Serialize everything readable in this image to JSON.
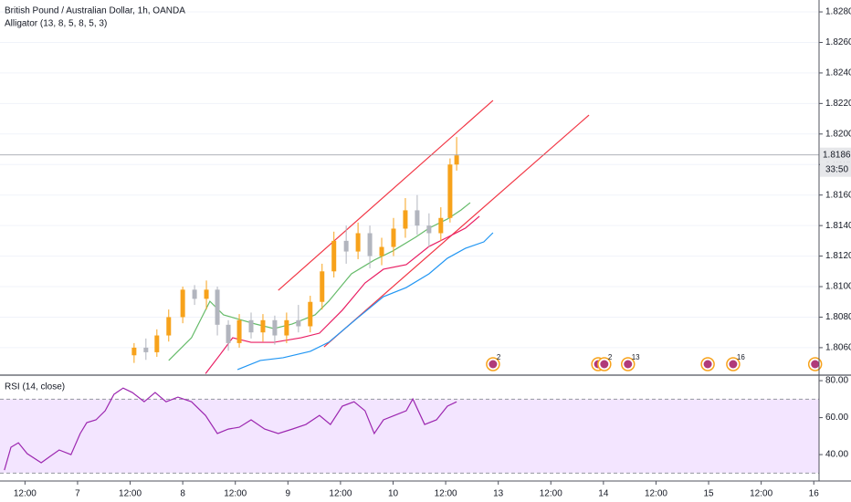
{
  "chart_data": [
    {
      "type": "candlestick",
      "title": "British Pound / Australian Dollar, 1h, OANDA",
      "subtitle": "Alligator (13, 8, 5, 8, 5, 3)",
      "up_color": "#f7a21b",
      "down_color": "#b2b5be",
      "xlim": [
        -17.7,
        169.2
      ],
      "ylim": [
        1.80426,
        1.82878
      ],
      "yticks": [
        {
          "value": 1.828,
          "label": "1.82800"
        },
        {
          "value": 1.826,
          "label": "1.82600"
        },
        {
          "value": 1.824,
          "label": "1.82400"
        },
        {
          "value": 1.822,
          "label": "1.82200"
        },
        {
          "value": 1.82,
          "label": "1.82000"
        },
        {
          "value": 1.818,
          "label": "1.81800"
        },
        {
          "value": 1.816,
          "label": "1.81600"
        },
        {
          "value": 1.814,
          "label": "1.81400"
        },
        {
          "value": 1.812,
          "label": "1.81200"
        },
        {
          "value": 1.81,
          "label": "1.81000"
        },
        {
          "value": 1.808,
          "label": "1.80800"
        },
        {
          "value": 1.806,
          "label": "1.80600"
        }
      ],
      "current_price": {
        "value": 1.81863,
        "label": "1.81863"
      },
      "countdown": "33:50",
      "candles": [
        {
          "x": 12.9,
          "open": 1.8055,
          "high": 1.8063,
          "low": 1.805,
          "close": 1.806
        },
        {
          "x": 15.6,
          "open": 1.806,
          "high": 1.8066,
          "low": 1.8052,
          "close": 1.8057
        },
        {
          "x": 18.1,
          "open": 1.8057,
          "high": 1.8072,
          "low": 1.8054,
          "close": 1.8068
        },
        {
          "x": 20.8,
          "open": 1.8068,
          "high": 1.8085,
          "low": 1.8064,
          "close": 1.808
        },
        {
          "x": 24,
          "open": 1.808,
          "high": 1.81,
          "low": 1.8076,
          "close": 1.8098
        },
        {
          "x": 26.7,
          "open": 1.8098,
          "high": 1.8101,
          "low": 1.8088,
          "close": 1.8092
        },
        {
          "x": 29.4,
          "open": 1.8092,
          "high": 1.8104,
          "low": 1.8085,
          "close": 1.8098
        },
        {
          "x": 31.9,
          "open": 1.8098,
          "high": 1.81,
          "low": 1.8068,
          "close": 1.8075
        },
        {
          "x": 34.4,
          "open": 1.8075,
          "high": 1.8078,
          "low": 1.8058,
          "close": 1.8063
        },
        {
          "x": 36.9,
          "open": 1.8063,
          "high": 1.8082,
          "low": 1.806,
          "close": 1.8078
        },
        {
          "x": 39.6,
          "open": 1.8078,
          "high": 1.8083,
          "low": 1.8066,
          "close": 1.807
        },
        {
          "x": 42.3,
          "open": 1.807,
          "high": 1.8082,
          "low": 1.8064,
          "close": 1.8078
        },
        {
          "x": 45,
          "open": 1.8078,
          "high": 1.8081,
          "low": 1.8062,
          "close": 1.8068
        },
        {
          "x": 47.7,
          "open": 1.8068,
          "high": 1.8083,
          "low": 1.8063,
          "close": 1.8078
        },
        {
          "x": 50.4,
          "open": 1.8078,
          "high": 1.8088,
          "low": 1.807,
          "close": 1.8074
        },
        {
          "x": 53.1,
          "open": 1.8074,
          "high": 1.8094,
          "low": 1.807,
          "close": 1.809
        },
        {
          "x": 55.8,
          "open": 1.809,
          "high": 1.8115,
          "low": 1.8085,
          "close": 1.811
        },
        {
          "x": 58.5,
          "open": 1.811,
          "high": 1.8136,
          "low": 1.8106,
          "close": 1.813
        },
        {
          "x": 61.3,
          "open": 1.813,
          "high": 1.814,
          "low": 1.8115,
          "close": 1.8123
        },
        {
          "x": 64,
          "open": 1.8123,
          "high": 1.8142,
          "low": 1.8118,
          "close": 1.8135
        },
        {
          "x": 66.7,
          "open": 1.8135,
          "high": 1.814,
          "low": 1.8112,
          "close": 1.812
        },
        {
          "x": 69.4,
          "open": 1.812,
          "high": 1.8132,
          "low": 1.8114,
          "close": 1.8126
        },
        {
          "x": 72.1,
          "open": 1.8126,
          "high": 1.8145,
          "low": 1.812,
          "close": 1.8138
        },
        {
          "x": 74.8,
          "open": 1.8138,
          "high": 1.8158,
          "low": 1.8132,
          "close": 1.815
        },
        {
          "x": 77.5,
          "open": 1.815,
          "high": 1.816,
          "low": 1.8134,
          "close": 1.814
        },
        {
          "x": 80.2,
          "open": 1.814,
          "high": 1.8148,
          "low": 1.8126,
          "close": 1.8135
        },
        {
          "x": 82.9,
          "open": 1.8135,
          "high": 1.8152,
          "low": 1.813,
          "close": 1.8145
        },
        {
          "x": 85,
          "open": 1.8145,
          "high": 1.8184,
          "low": 1.8142,
          "close": 1.818
        },
        {
          "x": 86.5,
          "open": 1.818,
          "high": 1.8198,
          "low": 1.8176,
          "close": 1.8186
        }
      ],
      "alligator": [
        {
          "color": "#2196f3",
          "x": [
            36.5,
            41.7,
            46.9,
            53.1,
            57.3,
            63.5,
            69.8,
            75,
            80.2,
            84.4,
            88.5,
            92.7,
            94.8
          ],
          "values": [
            1.80456,
            1.80516,
            1.80534,
            1.80576,
            1.80635,
            1.80785,
            1.80934,
            1.80994,
            1.81084,
            1.81186,
            1.81251,
            1.81293,
            1.81353
          ]
        },
        {
          "color": "#e91e63",
          "x": [
            29.2,
            32.3,
            35.4,
            39.6,
            44.8,
            51,
            55.2,
            60.4,
            65.6,
            69.8,
            75,
            80.2,
            84.4,
            88.5,
            91.7
          ],
          "values": [
            1.8043,
            1.80546,
            1.80665,
            1.80635,
            1.80635,
            1.80665,
            1.80695,
            1.80845,
            1.81024,
            1.81114,
            1.81144,
            1.81263,
            1.81323,
            1.81383,
            1.81461
          ]
        },
        {
          "color": "#66bb6a",
          "x": [
            20.8,
            26,
            30.2,
            33.3,
            36.9,
            40.6,
            44.8,
            49,
            54.2,
            57.3,
            62.5,
            67.7,
            71.9,
            77.1,
            80.2,
            84.4,
            87.5,
            89.6
          ],
          "values": [
            1.80516,
            1.80665,
            1.80904,
            1.80815,
            1.80785,
            1.80755,
            1.80725,
            1.80755,
            1.80815,
            1.80904,
            1.81084,
            1.81174,
            1.81233,
            1.81323,
            1.81383,
            1.81443,
            1.81502,
            1.8155
          ]
        }
      ],
      "trendlines": [
        {
          "color": "#f23645",
          "x": [
            45.8,
            94.8
          ],
          "values": [
            1.80976,
            1.8222
          ]
        },
        {
          "color": "#f23645",
          "x": [
            56.25,
            116.7
          ],
          "values": [
            1.80605,
            1.82124
          ]
        }
      ],
      "events": [
        {
          "x": 94.8,
          "count": 2
        },
        {
          "x": 118.8
        },
        {
          "x": 120.2,
          "count": 2
        },
        {
          "x": 125.6,
          "count": 13
        },
        {
          "x": 143.8
        },
        {
          "x": 149.6,
          "count": 16
        },
        {
          "x": 168.3
        }
      ]
    },
    {
      "type": "line",
      "title": "RSI (14, close)",
      "color": "#9c27b0",
      "band": [
        30,
        70
      ],
      "band_color": "#f3e5ff",
      "xlim": [
        -17.7,
        169.2
      ],
      "ylim": [
        26.7,
        82.5
      ],
      "yticks": [
        {
          "value": 80,
          "label": "80.00"
        },
        {
          "value": 60,
          "label": "60.00"
        },
        {
          "value": 40,
          "label": "40.00"
        }
      ],
      "xticks": [
        {
          "value": -12,
          "label": "12:00"
        },
        {
          "value": 0,
          "label": "7"
        },
        {
          "value": 12,
          "label": "12:00"
        },
        {
          "value": 24,
          "label": "8"
        },
        {
          "value": 36,
          "label": "12:00"
        },
        {
          "value": 48,
          "label": "9"
        },
        {
          "value": 60,
          "label": "12:00"
        },
        {
          "value": 72,
          "label": "10"
        },
        {
          "value": 84,
          "label": "12:00"
        },
        {
          "value": 96,
          "label": "13"
        },
        {
          "value": 108,
          "label": "12:00"
        },
        {
          "value": 120,
          "label": "14"
        },
        {
          "value": 132,
          "label": "12:00"
        },
        {
          "value": 144,
          "label": "15"
        },
        {
          "value": 156,
          "label": "12:00"
        },
        {
          "value": 168,
          "label": "16"
        }
      ],
      "x": [
        -16.7,
        -15.2,
        -13.5,
        -11.5,
        -8.3,
        -6.3,
        -4.2,
        -1.5,
        0.6,
        2.1,
        4.2,
        6.3,
        8.3,
        10.4,
        12.5,
        15.2,
        17.7,
        20.2,
        22.9,
        26,
        29.2,
        31.9,
        34.4,
        36.9,
        39.6,
        42.7,
        45.8,
        49,
        52.1,
        55.2,
        57.7,
        60.4,
        63.1,
        65.6,
        67.7,
        69.8,
        72.3,
        75,
        76.5,
        79.2,
        81.9,
        84.4,
        86.5
      ],
      "values": [
        31.6,
        44,
        46.4,
        40.5,
        35.6,
        39,
        42.5,
        40,
        51.4,
        57.3,
        58.8,
        63.7,
        72.6,
        76,
        73.6,
        68.6,
        73.6,
        68.6,
        71.1,
        68.6,
        61.2,
        51.4,
        53.8,
        54.8,
        58.8,
        53.8,
        51.4,
        53.8,
        56.3,
        61.2,
        56.3,
        66.2,
        68.6,
        63.7,
        51.4,
        58.8,
        61.2,
        63.7,
        70.1,
        56.3,
        58.8,
        66.2,
        68.6
      ]
    }
  ]
}
